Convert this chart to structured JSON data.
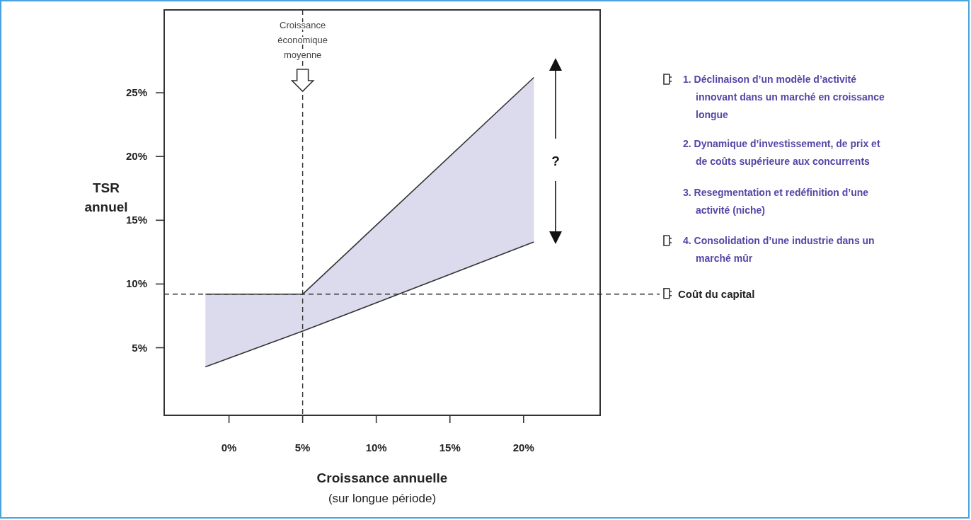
{
  "chart_data": {
    "type": "line",
    "xlabel": "Croissance annuelle\n(sur longue période)",
    "ylabel": "TSR\nannuel",
    "xlim": [
      -4.4,
      25.2
    ],
    "xticks": [
      {
        "value": 0,
        "label": "0%"
      },
      {
        "value": 5,
        "label": "5%"
      },
      {
        "value": 10,
        "label": "10%"
      },
      {
        "value": 15,
        "label": "15%"
      },
      {
        "value": 20,
        "label": "20%"
      }
    ],
    "ylim": [
      -0.3,
      31.5
    ],
    "yticks": [
      {
        "value": 5,
        "label": "5%"
      },
      {
        "value": 10,
        "label": "10%"
      },
      {
        "value": 15,
        "label": "15%"
      },
      {
        "value": 20,
        "label": "20%"
      },
      {
        "value": 25,
        "label": "25%"
      }
    ],
    "series": [
      {
        "color": "#333333",
        "x": [
          -1.6,
          5,
          20.7
        ],
        "values": [
          9.2,
          9.2,
          26.2
        ]
      },
      {
        "color": "#333333",
        "x": [
          -1.6,
          5,
          20.7
        ],
        "values": [
          3.5,
          6.3,
          13.3
        ]
      }
    ],
    "ref_lines": [
      {
        "axis": "x",
        "value": 5,
        "label": "Croissance économique moyenne",
        "line_style": "dashed",
        "color": "#333333"
      },
      {
        "axis": "y",
        "value": 9.2,
        "label": "Coût du capital",
        "line_style": "dashed",
        "color": "#333333"
      }
    ],
    "annotations": [
      "1. Déclinaison d’un modèle d’activité innovant dans un marché en croissance longue",
      "2. Dynamique d’investissement, de prix et de coûts supérieure aux concurrents",
      "3. Resegmentation et redéfinition d’une activité (niche)",
      "4. Consolidation d’une industrie dans un marché mûr",
      "?"
    ],
    "grid": false
  }
}
